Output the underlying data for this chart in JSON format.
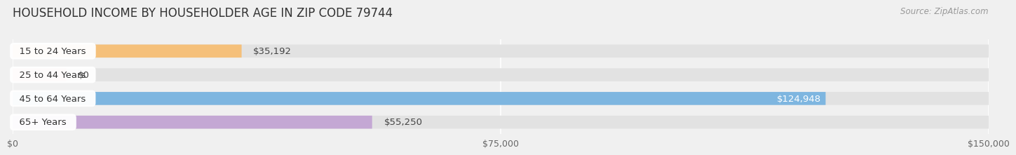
{
  "title": "HOUSEHOLD INCOME BY HOUSEHOLDER AGE IN ZIP CODE 79744",
  "source": "Source: ZipAtlas.com",
  "categories": [
    "15 to 24 Years",
    "25 to 44 Years",
    "45 to 64 Years",
    "65+ Years"
  ],
  "values": [
    35192,
    0,
    124948,
    55250
  ],
  "bar_colors": [
    "#f5c07a",
    "#f0a0a0",
    "#7eb6e0",
    "#c4a8d4"
  ],
  "bar_label_colors": [
    "#555555",
    "#555555",
    "#ffffff",
    "#555555"
  ],
  "label_inside": [
    false,
    false,
    true,
    false
  ],
  "xlim": [
    0,
    150000
  ],
  "xticks": [
    0,
    75000,
    150000
  ],
  "xticklabels": [
    "$0",
    "$75,000",
    "$150,000"
  ],
  "background_color": "#f0f0f0",
  "bar_bg_color": "#e2e2e2",
  "bar_height": 0.55,
  "title_fontsize": 12,
  "label_fontsize": 9.5,
  "tick_fontsize": 9,
  "source_fontsize": 8.5,
  "value_labels": [
    "$35,192",
    "$0",
    "$124,948",
    "$55,250"
  ]
}
